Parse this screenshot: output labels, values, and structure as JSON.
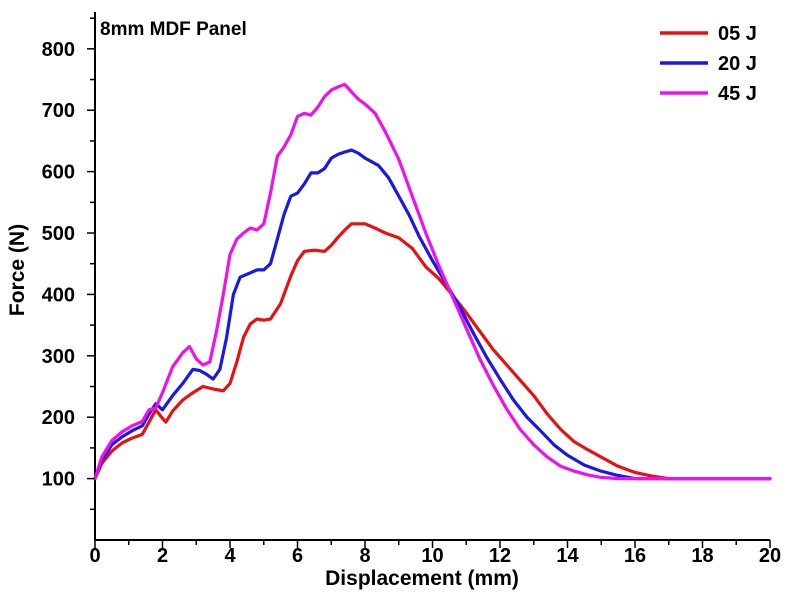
{
  "chart_data": {
    "type": "line",
    "title": "8mm MDF Panel",
    "xlabel": "Displacement (mm)",
    "ylabel": "Force (N)",
    "xlim": [
      0,
      20
    ],
    "ylim": [
      0,
      860
    ],
    "xticks": [
      0,
      2,
      4,
      6,
      8,
      10,
      12,
      14,
      16,
      18,
      20
    ],
    "yticks": [
      100,
      200,
      300,
      400,
      500,
      600,
      700,
      800
    ],
    "grid": false,
    "legend_position": "top-right",
    "series": [
      {
        "name": "05 J",
        "color": "#e81010",
        "x": [
          0,
          0.2,
          0.5,
          0.8,
          1.1,
          1.4,
          1.6,
          1.8,
          2.0,
          2.1,
          2.3,
          2.6,
          2.9,
          3.2,
          3.5,
          3.8,
          4.0,
          4.2,
          4.4,
          4.6,
          4.8,
          5.0,
          5.2,
          5.5,
          5.8,
          6.0,
          6.2,
          6.5,
          6.8,
          7.0,
          7.2,
          7.4,
          7.6,
          7.8,
          8.0,
          8.3,
          8.6,
          9.0,
          9.4,
          9.8,
          10.2,
          10.6,
          11.0,
          11.4,
          11.8,
          12.2,
          12.6,
          13.0,
          13.4,
          13.8,
          14.2,
          14.6,
          15.0,
          15.5,
          16.0,
          16.5,
          17.0,
          18.0,
          19.0,
          20.0
        ],
        "values": [
          100,
          125,
          145,
          158,
          166,
          172,
          192,
          212,
          198,
          192,
          210,
          228,
          240,
          250,
          246,
          243,
          255,
          290,
          330,
          352,
          360,
          358,
          360,
          385,
          430,
          455,
          470,
          472,
          470,
          480,
          493,
          505,
          515,
          515,
          515,
          508,
          500,
          492,
          475,
          445,
          425,
          398,
          370,
          340,
          310,
          285,
          260,
          235,
          205,
          180,
          160,
          147,
          135,
          120,
          110,
          104,
          100,
          100,
          100,
          100
        ]
      },
      {
        "name": "20 J",
        "color": "#1818e8",
        "x": [
          0,
          0.2,
          0.5,
          0.8,
          1.1,
          1.4,
          1.6,
          1.8,
          2.0,
          2.3,
          2.6,
          2.9,
          3.1,
          3.3,
          3.5,
          3.7,
          3.9,
          4.1,
          4.3,
          4.6,
          4.8,
          5.0,
          5.2,
          5.4,
          5.6,
          5.8,
          6.0,
          6.2,
          6.4,
          6.6,
          6.8,
          7.0,
          7.2,
          7.4,
          7.6,
          7.8,
          8.0,
          8.2,
          8.4,
          8.7,
          9.0,
          9.3,
          9.6,
          10.0,
          10.4,
          10.8,
          11.2,
          11.6,
          12.0,
          12.4,
          12.8,
          13.2,
          13.6,
          14.0,
          14.5,
          15.0,
          15.5,
          16.0,
          17.0,
          18.0,
          19.0,
          20.0
        ],
        "values": [
          100,
          130,
          155,
          168,
          178,
          186,
          205,
          222,
          212,
          235,
          255,
          278,
          276,
          270,
          262,
          278,
          330,
          400,
          428,
          435,
          440,
          440,
          450,
          490,
          530,
          560,
          565,
          580,
          598,
          598,
          605,
          622,
          628,
          632,
          635,
          630,
          622,
          616,
          610,
          590,
          560,
          530,
          495,
          455,
          418,
          380,
          338,
          298,
          262,
          228,
          200,
          178,
          155,
          138,
          122,
          112,
          105,
          100,
          100,
          100,
          100,
          100
        ]
      },
      {
        "name": "45 J",
        "color": "#ee10ee",
        "x": [
          0,
          0.2,
          0.5,
          0.8,
          1.1,
          1.4,
          1.6,
          1.8,
          2.0,
          2.3,
          2.6,
          2.8,
          3.0,
          3.2,
          3.4,
          3.6,
          3.8,
          4.0,
          4.2,
          4.4,
          4.6,
          4.8,
          5.0,
          5.2,
          5.4,
          5.6,
          5.8,
          6.0,
          6.2,
          6.4,
          6.6,
          6.8,
          7.0,
          7.2,
          7.4,
          7.6,
          7.8,
          8.0,
          8.3,
          8.6,
          9.0,
          9.4,
          9.8,
          10.2,
          10.6,
          11.0,
          11.4,
          11.8,
          12.2,
          12.6,
          13.0,
          13.4,
          13.8,
          14.2,
          14.6,
          15.0,
          15.5,
          16.0,
          17.0,
          18.0,
          19.0,
          20.0
        ],
        "values": [
          100,
          135,
          162,
          176,
          186,
          193,
          212,
          215,
          240,
          282,
          305,
          315,
          295,
          285,
          290,
          340,
          400,
          465,
          490,
          500,
          508,
          505,
          515,
          565,
          625,
          640,
          660,
          690,
          695,
          692,
          705,
          722,
          733,
          738,
          742,
          730,
          718,
          710,
          695,
          665,
          620,
          560,
          500,
          445,
          395,
          345,
          295,
          252,
          213,
          180,
          155,
          135,
          120,
          112,
          106,
          102,
          100,
          100,
          100,
          100,
          100,
          100
        ]
      }
    ]
  }
}
